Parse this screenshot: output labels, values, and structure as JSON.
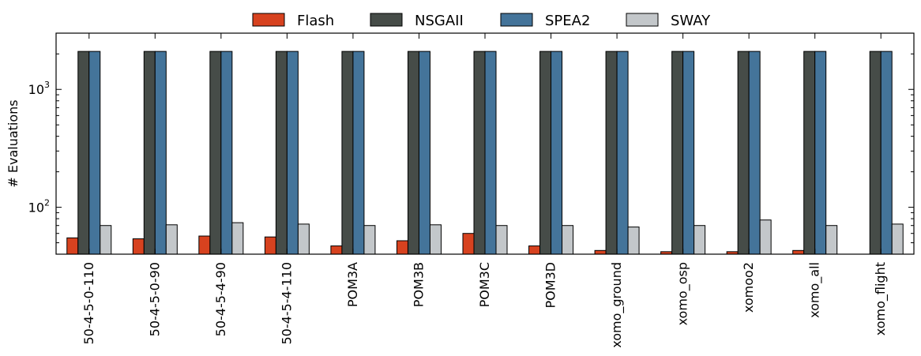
{
  "chart_data": {
    "type": "bar",
    "title": "",
    "xlabel": "",
    "ylabel": "# Evaluations",
    "yscale": "log",
    "ylim": [
      40,
      3000
    ],
    "grid": false,
    "legend_position": "top-center",
    "y_ticks": [
      {
        "value": 100,
        "base": "10",
        "exp": "2"
      },
      {
        "value": 1000,
        "base": "10",
        "exp": "3"
      }
    ],
    "categories": [
      "50-4-5-0-110",
      "50-4-5-0-90",
      "50-4-5-4-90",
      "50-4-5-4-110",
      "POM3A",
      "POM3B",
      "POM3C",
      "POM3D",
      "xomo_ground",
      "xomo_osp",
      "xomoo2",
      "xomo_all",
      "xomo_flight"
    ],
    "series": [
      {
        "name": "Flash",
        "color": "#d7421f",
        "values": [
          55,
          54,
          57,
          56,
          47,
          52,
          60,
          47,
          43,
          42,
          42,
          43,
          40
        ]
      },
      {
        "name": "NSGAII",
        "color": "#464c48",
        "values": [
          2100,
          2100,
          2100,
          2100,
          2100,
          2100,
          2100,
          2100,
          2100,
          2100,
          2100,
          2100,
          2100
        ]
      },
      {
        "name": "SPEA2",
        "color": "#44749a",
        "values": [
          2100,
          2100,
          2100,
          2100,
          2100,
          2100,
          2100,
          2100,
          2100,
          2100,
          2100,
          2100,
          2100
        ]
      },
      {
        "name": "SWAY",
        "color": "#c3c7ca",
        "values": [
          70,
          71,
          74,
          72,
          70,
          71,
          70,
          70,
          68,
          70,
          78,
          70,
          72
        ]
      }
    ]
  }
}
